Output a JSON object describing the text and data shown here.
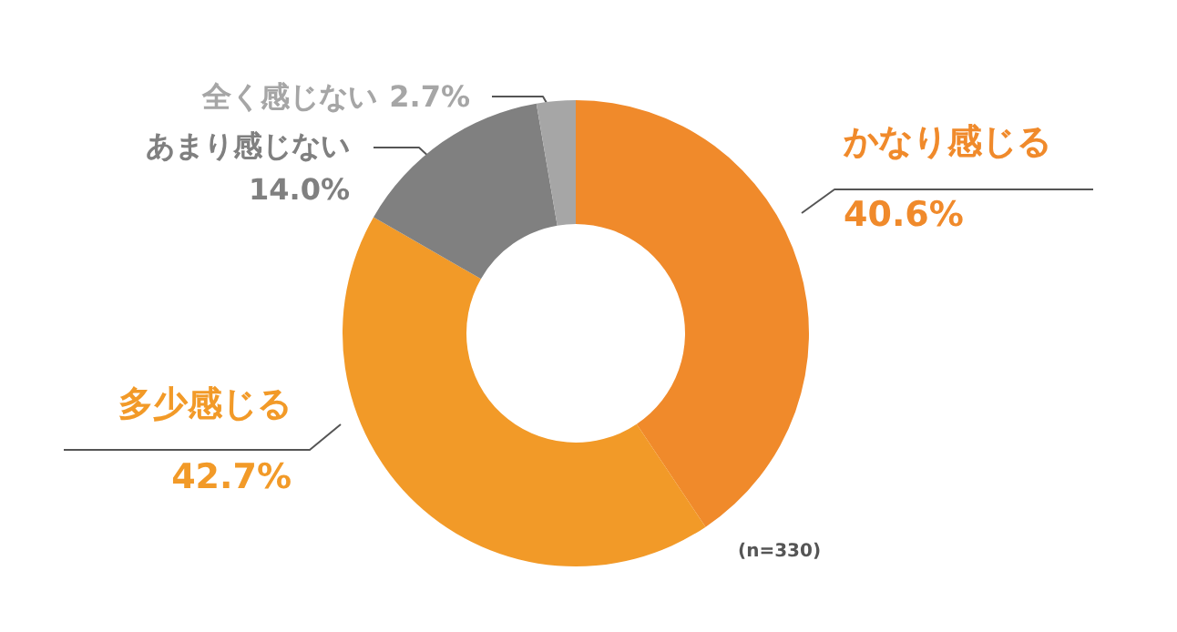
{
  "chart_data": {
    "type": "donut",
    "categories": [
      "かなり感じる",
      "多少感じる",
      "あまり感じない",
      "全く感じない"
    ],
    "values": [
      40.6,
      42.7,
      14.0,
      2.7
    ],
    "value_labels": [
      "40.6%",
      "42.7%",
      "14.0%",
      "2.7%"
    ],
    "colors": [
      "#f08a2b",
      "#f29a28",
      "#808080",
      "#a6a6a6"
    ],
    "annotations": [
      "(n=330)"
    ],
    "legend": false
  }
}
